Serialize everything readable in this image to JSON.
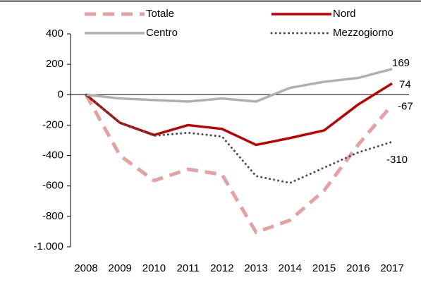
{
  "chart_data": {
    "type": "line",
    "x": [
      "2008",
      "2009",
      "2010",
      "2011",
      "2012",
      "2013",
      "2014",
      "2015",
      "2016",
      "2017"
    ],
    "series": [
      {
        "name": "Totale",
        "color": "#e3a1a1",
        "values": [
          0,
          -400,
          -565,
          -490,
          -525,
          -905,
          -825,
          -630,
          -330,
          -67
        ]
      },
      {
        "name": "Nord",
        "color": "#c00000",
        "values": [
          0,
          -185,
          -265,
          -200,
          -225,
          -330,
          -285,
          -235,
          -65,
          74
        ]
      },
      {
        "name": "Centro",
        "color": "#b0b0b0",
        "values": [
          0,
          -25,
          -35,
          -45,
          -25,
          -45,
          45,
          85,
          110,
          169
        ]
      },
      {
        "name": "Mezzogiorno",
        "color": "#505050",
        "values": [
          0,
          -185,
          -270,
          -250,
          -275,
          -535,
          -580,
          -480,
          -380,
          -310
        ]
      }
    ],
    "ylim": [
      -1000,
      400
    ],
    "yticks": [
      400,
      200,
      0,
      -200,
      -400,
      -600,
      -800,
      {
        "value": -1000,
        "label": "-1.000"
      }
    ]
  }
}
